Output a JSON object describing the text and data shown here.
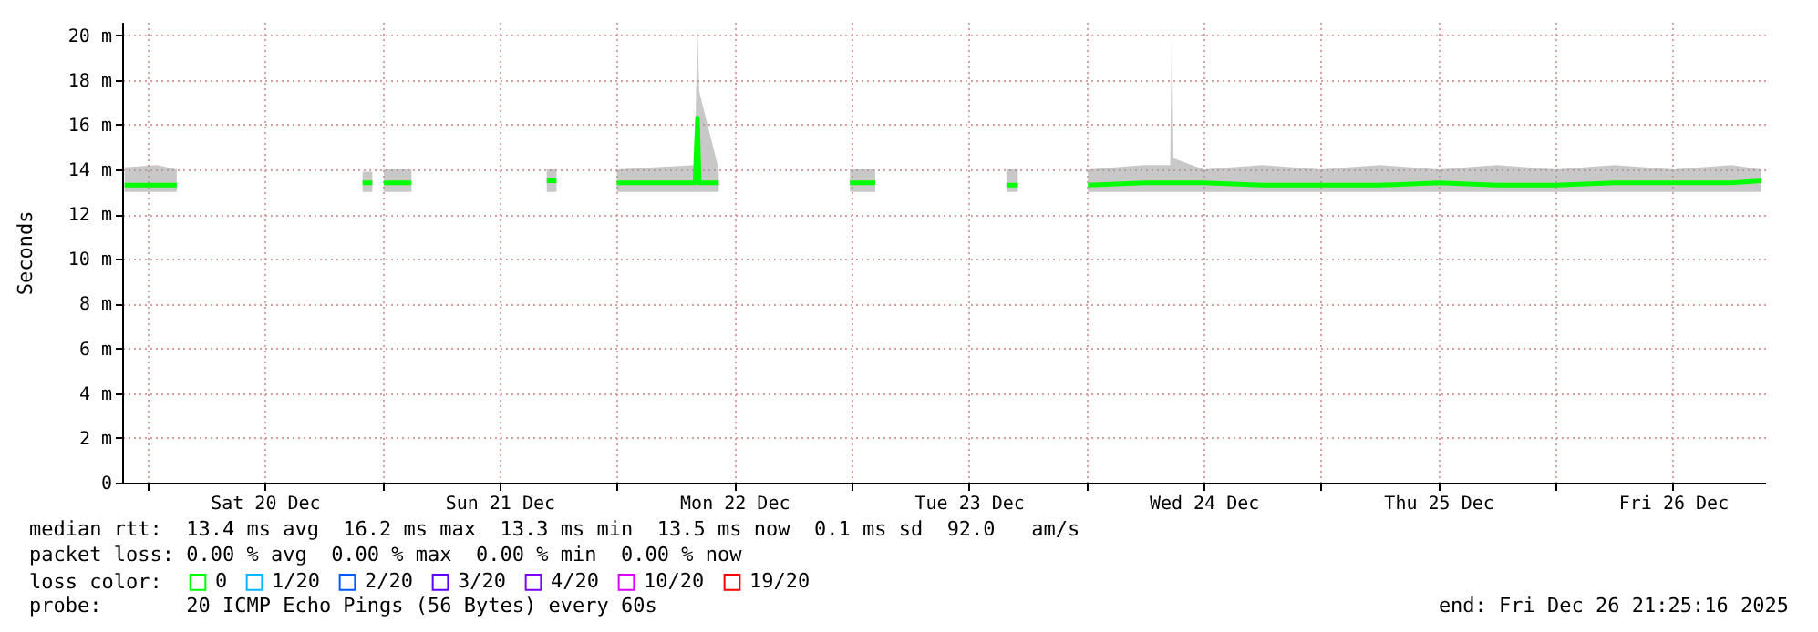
{
  "chart_data": {
    "type": "line",
    "ylabel": "Seconds",
    "x": [
      "2025-12-19T21:40",
      "2025-12-20T01:00",
      "2025-12-20T03:00",
      "2025-12-20T12:00",
      "2025-12-20T22:00",
      "2025-12-20T23:00",
      "2025-12-20T23:30",
      "2025-12-21T00:10",
      "2025-12-21T03:00",
      "2025-12-21T10:00",
      "2025-12-21T16:50",
      "2025-12-21T17:50",
      "2025-12-21T20:00",
      "2025-12-22T00:00",
      "2025-12-22T08:00",
      "2025-12-22T08:05",
      "2025-12-22T08:15",
      "2025-12-22T08:25",
      "2025-12-22T10:25",
      "2025-12-22T16:00",
      "2025-12-22T23:05",
      "2025-12-22T23:20",
      "2025-12-22T23:50",
      "2025-12-23T02:25",
      "2025-12-23T09:00",
      "2025-12-23T15:50",
      "2025-12-23T17:00",
      "2025-12-23T20:00",
      "2025-12-24T00:10",
      "2025-12-24T06:00",
      "2025-12-24T08:35",
      "2025-12-24T08:45",
      "2025-12-24T08:55",
      "2025-12-24T12:00",
      "2025-12-24T18:00",
      "2025-12-25T00:00",
      "2025-12-25T06:00",
      "2025-12-25T12:00",
      "2025-12-25T18:00",
      "2025-12-26T00:00",
      "2025-12-26T06:00",
      "2025-12-26T12:00",
      "2025-12-26T18:00",
      "2025-12-26T21:00"
    ],
    "series": [
      {
        "name": "0",
        "color": "#00ff00",
        "values": [
          13.3,
          13.3,
          13.3,
          null,
          13.4,
          13.4,
          null,
          13.4,
          13.4,
          null,
          13.5,
          13.5,
          null,
          13.4,
          13.4,
          14.5,
          16.3,
          13.4,
          13.4,
          null,
          13.5,
          null,
          13.4,
          13.4,
          null,
          13.3,
          13.3,
          null,
          13.3,
          13.4,
          13.4,
          13.4,
          13.4,
          13.4,
          13.3,
          13.3,
          13.3,
          13.4,
          13.3,
          13.3,
          13.4,
          13.4,
          13.4,
          13.5
        ],
        "lower": [
          13,
          13,
          13,
          null,
          13,
          13,
          null,
          13,
          13,
          null,
          13,
          13,
          null,
          13,
          13,
          13,
          13,
          13,
          13,
          null,
          13,
          null,
          13,
          13,
          null,
          13,
          13,
          null,
          13,
          13,
          13,
          13,
          13,
          13,
          13,
          13,
          13,
          13,
          13,
          13,
          13,
          13,
          13,
          13
        ],
        "upper": [
          14.1,
          14.2,
          14,
          null,
          13.9,
          13.9,
          null,
          14,
          14,
          null,
          14,
          14,
          null,
          14,
          14.2,
          17,
          20.4,
          17.5,
          14,
          null,
          14,
          null,
          14,
          14,
          null,
          14,
          14,
          null,
          14,
          14.2,
          14.2,
          20.5,
          14.5,
          14,
          14.2,
          14,
          14.2,
          14,
          14.2,
          14,
          14.2,
          14,
          14.2,
          14
        ]
      },
      {
        "name": "1/20",
        "color": "#00b8ff",
        "values": [
          null,
          null,
          null,
          null,
          null,
          null,
          null,
          null,
          null,
          null,
          null,
          null,
          null,
          null,
          null,
          null,
          null,
          null,
          null,
          null,
          null,
          null,
          null,
          null,
          null,
          null,
          null,
          null,
          null,
          null,
          null,
          null,
          null,
          null,
          null,
          null,
          null,
          null,
          null,
          null,
          null,
          null,
          null,
          null
        ]
      },
      {
        "name": "2/20",
        "color": "#0059ff",
        "values": [
          null,
          null,
          null,
          null,
          null,
          null,
          null,
          null,
          null,
          null,
          null,
          null,
          null,
          null,
          null,
          null,
          null,
          null,
          null,
          null,
          null,
          null,
          null,
          null,
          null,
          null,
          null,
          null,
          null,
          null,
          null,
          null,
          null,
          null,
          null,
          null,
          null,
          null,
          null,
          null,
          null,
          null,
          null,
          null
        ]
      },
      {
        "name": "3/20",
        "color": "#5e00ff",
        "values": [
          null,
          null,
          null,
          null,
          null,
          null,
          null,
          null,
          null,
          null,
          null,
          null,
          null,
          null,
          null,
          null,
          null,
          null,
          null,
          null,
          null,
          null,
          null,
          null,
          null,
          null,
          null,
          null,
          null,
          null,
          null,
          null,
          null,
          null,
          null,
          null,
          null,
          null,
          null,
          null,
          null,
          null,
          null,
          null
        ]
      },
      {
        "name": "4/20",
        "color": "#7e00ff",
        "values": [
          null,
          null,
          null,
          null,
          null,
          null,
          null,
          null,
          null,
          null,
          null,
          null,
          null,
          null,
          null,
          null,
          null,
          null,
          null,
          null,
          null,
          null,
          null,
          null,
          null,
          null,
          null,
          null,
          null,
          null,
          null,
          null,
          null,
          null,
          null,
          null,
          null,
          null,
          null,
          null,
          null,
          null,
          null,
          null
        ]
      },
      {
        "name": "10/20",
        "color": "#dd00ff",
        "values": [
          null,
          null,
          null,
          null,
          null,
          null,
          null,
          null,
          null,
          null,
          null,
          null,
          null,
          null,
          null,
          null,
          null,
          null,
          null,
          null,
          null,
          null,
          null,
          null,
          null,
          null,
          null,
          null,
          null,
          null,
          null,
          null,
          null,
          null,
          null,
          null,
          null,
          null,
          null,
          null,
          null,
          null,
          null,
          null
        ]
      },
      {
        "name": "19/20",
        "color": "#ff0000",
        "values": [
          null,
          null,
          null,
          null,
          null,
          null,
          null,
          null,
          null,
          null,
          null,
          null,
          null,
          null,
          null,
          null,
          null,
          null,
          null,
          null,
          null,
          null,
          null,
          null,
          null,
          null,
          null,
          null,
          null,
          null,
          null,
          null,
          null,
          null,
          null,
          null,
          null,
          null,
          null,
          null,
          null,
          null,
          null,
          null
        ]
      }
    ],
    "legend_title": "loss color:",
    "legend": "bottom left",
    "xlim": [
      "2025-12-19T21:25",
      "2025-12-26T21:25"
    ],
    "xticks": [
      {
        "value": "2025-12-20T00:00",
        "label": null
      },
      {
        "value": "2025-12-20T12:00",
        "label": "Sat 20 Dec"
      },
      {
        "value": "2025-12-21T00:00",
        "label": null
      },
      {
        "value": "2025-12-21T12:00",
        "label": "Sun 21 Dec"
      },
      {
        "value": "2025-12-22T00:00",
        "label": null
      },
      {
        "value": "2025-12-22T12:00",
        "label": "Mon 22 Dec"
      },
      {
        "value": "2025-12-23T00:00",
        "label": null
      },
      {
        "value": "2025-12-23T12:00",
        "label": "Tue 23 Dec"
      },
      {
        "value": "2025-12-24T00:00",
        "label": null
      },
      {
        "value": "2025-12-24T12:00",
        "label": "Wed 24 Dec"
      },
      {
        "value": "2025-12-25T00:00",
        "label": null
      },
      {
        "value": "2025-12-25T12:00",
        "label": "Thu 25 Dec"
      },
      {
        "value": "2025-12-26T00:00",
        "label": null
      },
      {
        "value": "2025-12-26T12:00",
        "label": "Fri 26 Dec"
      }
    ],
    "ylim": [
      0,
      20.6
    ],
    "yticks": [
      0,
      {
        "value": 2,
        "label": "2 m"
      },
      {
        "value": 4,
        "label": "4 m"
      },
      {
        "value": 6,
        "label": "6 m"
      },
      {
        "value": 8,
        "label": "8 m"
      },
      {
        "value": 10,
        "label": "10 m"
      },
      {
        "value": 12,
        "label": "12 m"
      },
      {
        "value": 14,
        "label": "14 m"
      },
      {
        "value": 16,
        "label": "16 m"
      },
      {
        "value": 18,
        "label": "18 m"
      },
      {
        "value": 20,
        "label": "20 m"
      }
    ],
    "grid": true,
    "line_style": "solid",
    "annotations": [
      "median rtt:  13.4 ms avg  16.2 ms max  13.3 ms min  13.5 ms now  0.1 ms sd  92.0   am/s",
      "packet loss: 0.00 % avg  0.00 % max  0.00 % min  0.00 % now",
      "probe:       20 ICMP Echo Pings (56 Bytes) every 60s",
      "end: Fri Dec 26 21:25:16 2025"
    ]
  }
}
